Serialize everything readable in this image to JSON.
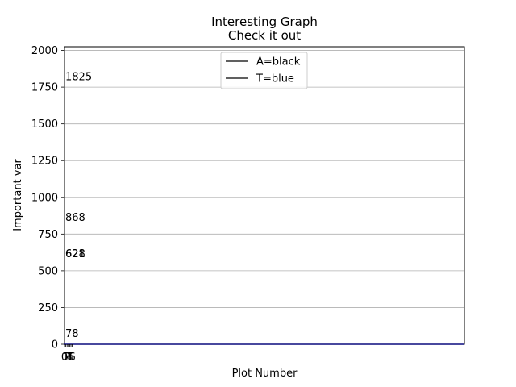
{
  "chart_data": {
    "type": "line",
    "title": "Interesting Graph",
    "subtitle": "Check it out",
    "xlabel": "Plot Number",
    "ylabel": "Important var",
    "ylim": [
      0,
      2025
    ],
    "xlim": [
      0,
      6
    ],
    "y_ticks": [
      0,
      250,
      500,
      750,
      1000,
      1250,
      1500,
      1750,
      2000
    ],
    "y_tick_labels": [
      "0",
      "250",
      "500",
      "750",
      "1000",
      "1250",
      "1500",
      "1750",
      "2000"
    ],
    "x_tick_labels": [
      "0",
      "1",
      "2",
      "3",
      "4",
      "5",
      "6"
    ],
    "grid": "horizontal",
    "legend": {
      "placement": "top-center",
      "entries": [
        {
          "label": "A=black",
          "color": "#000000"
        },
        {
          "label": "T=blue",
          "color": "#000000"
        }
      ]
    },
    "series": [
      {
        "name": "A=black",
        "color": "#000000",
        "x": [
          0,
          6
        ],
        "y": [
          0,
          0
        ]
      },
      {
        "name": "T=blue",
        "color": "#00008b",
        "x": [
          0,
          6
        ],
        "y": [
          0,
          0
        ]
      }
    ],
    "annotations": [
      {
        "text": "1825",
        "y": 1825
      },
      {
        "text": "868",
        "y": 868
      },
      {
        "text": "621",
        "y": 621
      },
      {
        "text": "628",
        "y": 621
      },
      {
        "text": "78",
        "y": 78
      }
    ]
  }
}
